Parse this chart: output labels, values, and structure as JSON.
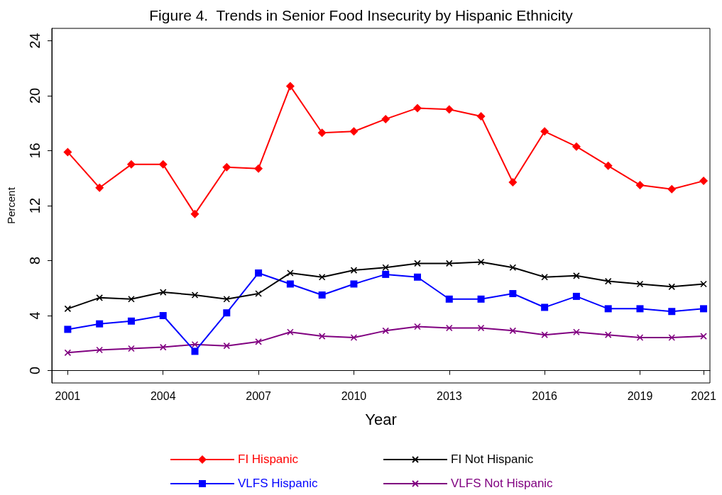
{
  "chart_data": {
    "type": "line",
    "title": "Figure 4.  Trends in Senior Food Insecurity by Hispanic Ethnicity",
    "xlabel": "Year",
    "ylabel": "Percent",
    "x": [
      2001,
      2002,
      2003,
      2004,
      2005,
      2006,
      2007,
      2008,
      2009,
      2010,
      2011,
      2012,
      2013,
      2014,
      2015,
      2016,
      2017,
      2018,
      2019,
      2020,
      2021
    ],
    "series": [
      {
        "name": "FI Hispanic",
        "color": "#ff0000",
        "marker": "diamond",
        "values": [
          15.9,
          13.3,
          15.0,
          15.0,
          11.4,
          14.8,
          14.7,
          20.7,
          17.3,
          17.4,
          18.3,
          19.1,
          19.0,
          18.5,
          13.7,
          17.4,
          16.3,
          14.9,
          13.5,
          13.2,
          13.8
        ]
      },
      {
        "name": "FI Not Hispanic",
        "color": "#000000",
        "marker": "cross",
        "values": [
          4.5,
          5.3,
          5.2,
          5.7,
          5.5,
          5.2,
          5.6,
          7.1,
          6.8,
          7.3,
          7.5,
          7.8,
          7.8,
          7.9,
          7.5,
          6.8,
          6.9,
          6.5,
          6.3,
          6.1,
          6.3
        ]
      },
      {
        "name": "VLFS Hispanic",
        "color": "#0000ff",
        "marker": "square",
        "values": [
          3.0,
          3.4,
          3.6,
          4.0,
          1.4,
          4.2,
          7.1,
          6.3,
          5.5,
          6.3,
          7.0,
          6.8,
          5.2,
          5.2,
          5.6,
          4.6,
          5.4,
          4.5,
          4.5,
          4.3,
          4.5
        ]
      },
      {
        "name": "VLFS Not Hispanic",
        "color": "#800080",
        "marker": "cross",
        "values": [
          1.3,
          1.5,
          1.6,
          1.7,
          1.9,
          1.8,
          2.1,
          2.8,
          2.5,
          2.4,
          2.9,
          3.2,
          3.1,
          3.1,
          2.9,
          2.6,
          2.8,
          2.6,
          2.4,
          2.4,
          2.5
        ]
      }
    ],
    "xlim": [
      2000.5,
      2021.2
    ],
    "xticks": [
      2001,
      2004,
      2007,
      2010,
      2013,
      2016,
      2019,
      2021
    ],
    "ylim": [
      -0.9,
      24.9
    ],
    "yticks": [
      0,
      4,
      8,
      12,
      16,
      20,
      24
    ],
    "legend": "bottom"
  }
}
